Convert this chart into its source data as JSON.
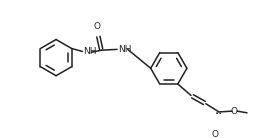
{
  "bg_color": "#ffffff",
  "line_color": "#222222",
  "line_width": 1.1,
  "font_size": 6.5,
  "fig_width": 2.8,
  "fig_height": 1.38,
  "dpi": 100,
  "xlim": [
    0,
    280
  ],
  "ylim": [
    0,
    138
  ]
}
